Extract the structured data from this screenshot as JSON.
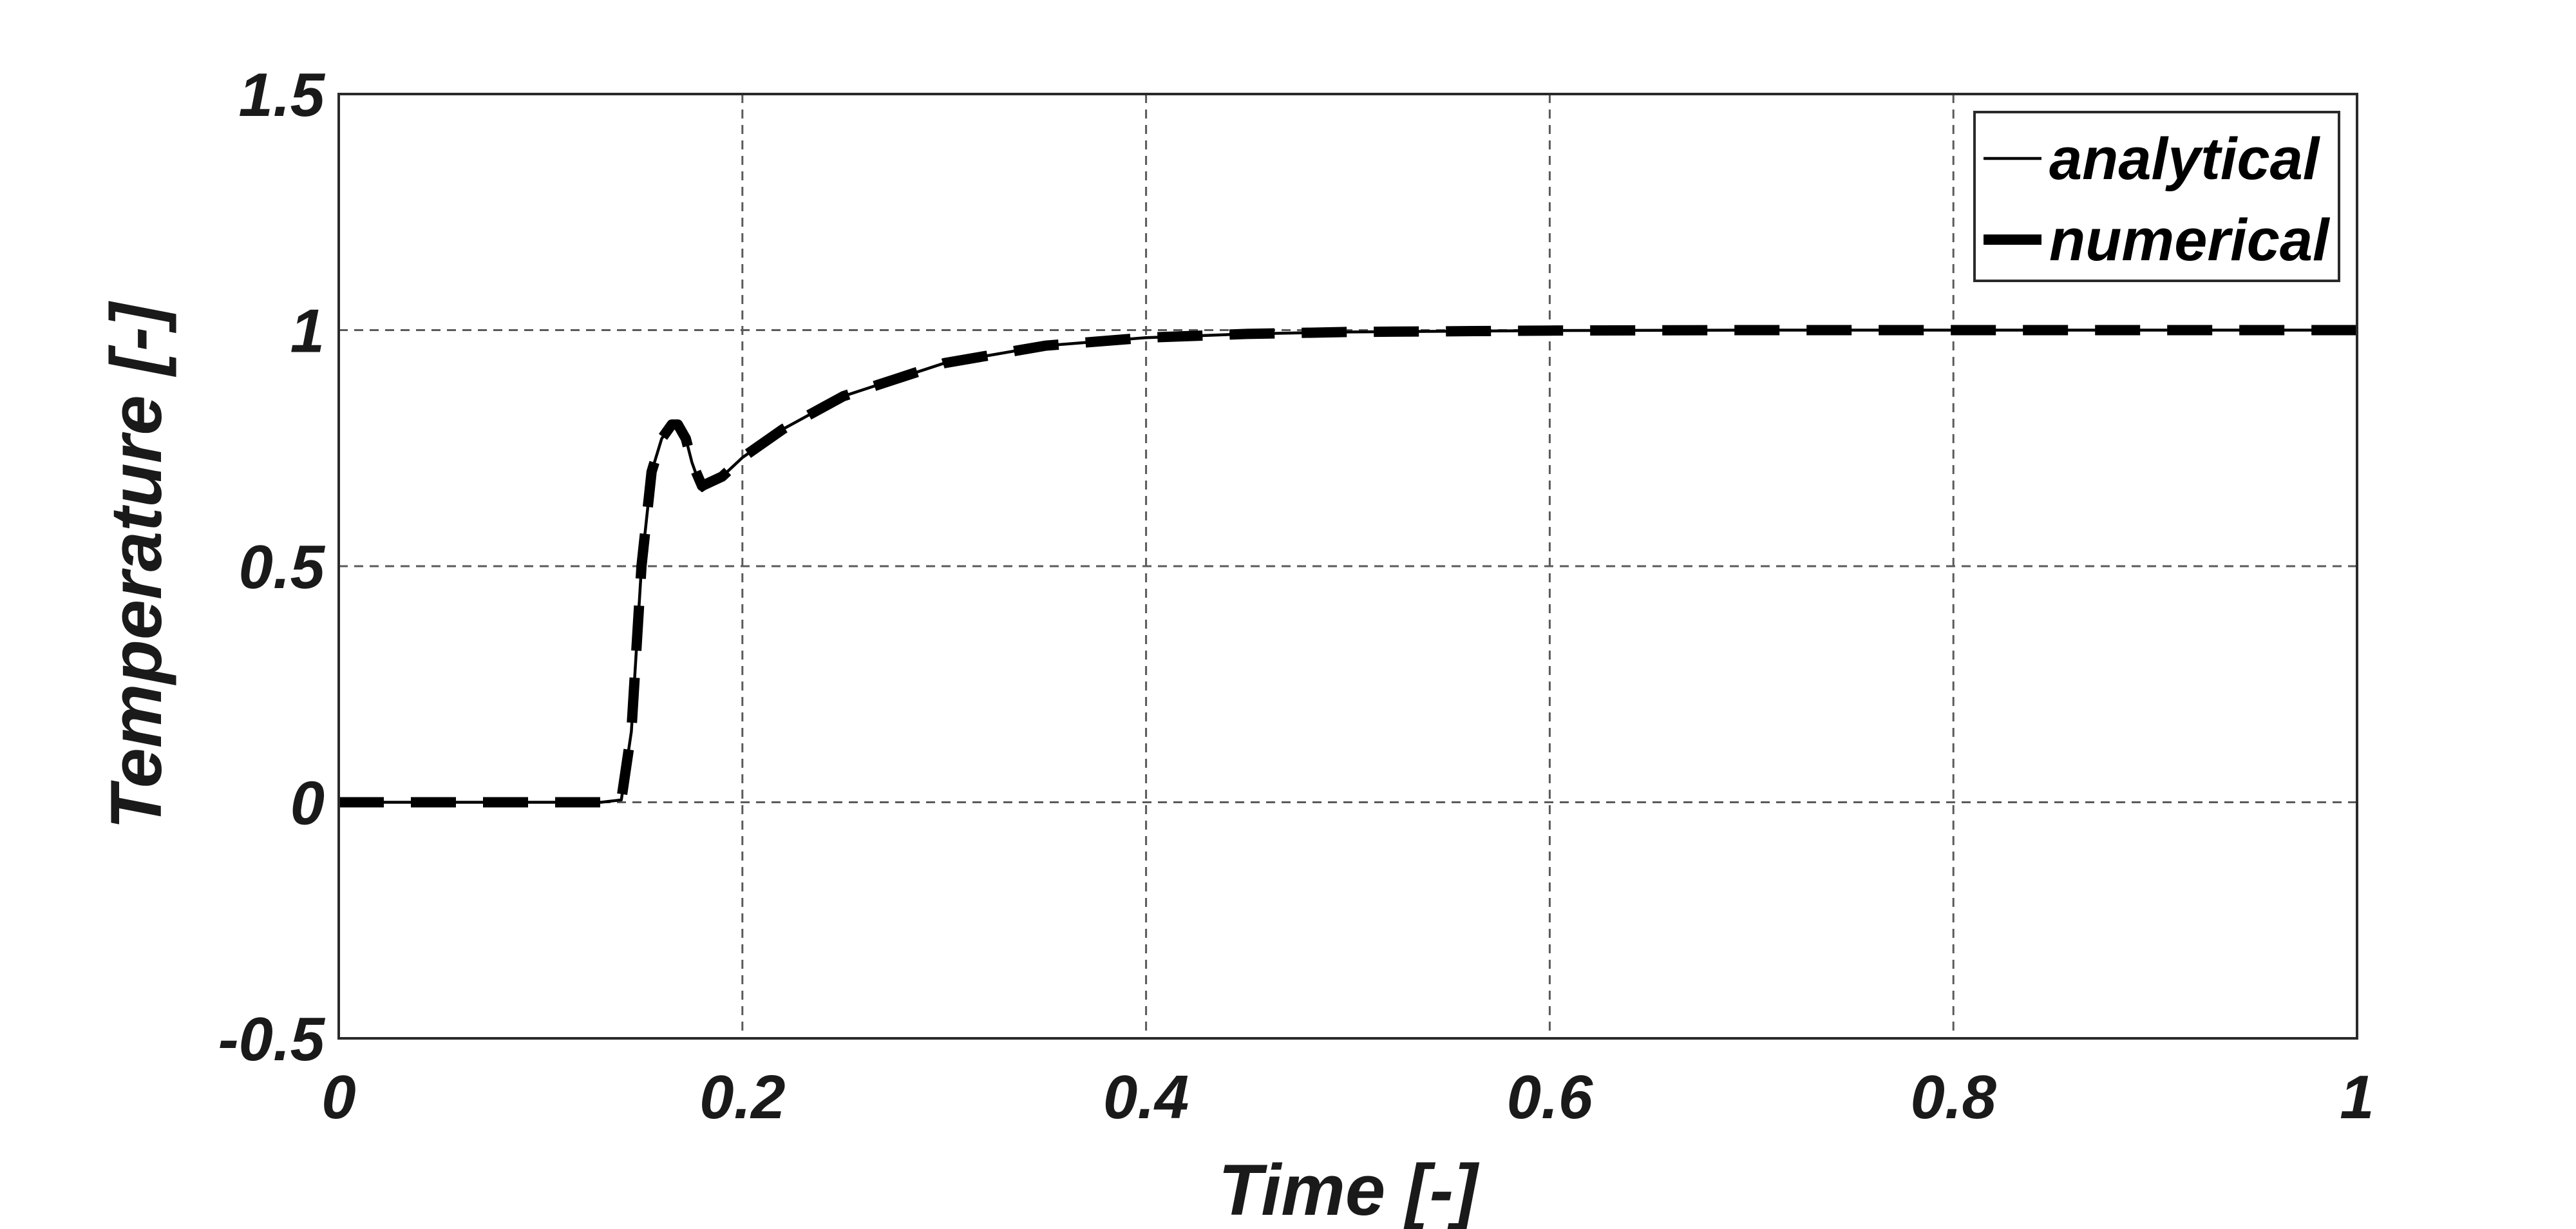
{
  "chart_data": {
    "type": "line",
    "title": "",
    "xlabel": "Time [-]",
    "ylabel": "Temperature [-]",
    "xlim": [
      0,
      1
    ],
    "ylim": [
      -0.5,
      1.5
    ],
    "xticks": [
      0,
      0.2,
      0.4,
      0.6,
      0.8,
      1
    ],
    "yticks": [
      -0.5,
      0,
      0.5,
      1,
      1.5
    ],
    "xtick_labels": [
      "0",
      "0.2",
      "0.4",
      "0.6",
      "0.8",
      "1"
    ],
    "ytick_labels": [
      "-0.5",
      "0",
      "0.5",
      "1",
      "1.5"
    ],
    "grid": true,
    "legend_position": "top-right",
    "colors": {
      "line": "#000000",
      "grid": "#5a5a5a",
      "text": "#1a1a1a"
    },
    "series": [
      {
        "name": "analytical",
        "style": "solid-thin",
        "x": [
          0,
          0.05,
          0.1,
          0.13,
          0.14,
          0.145,
          0.15,
          0.155,
          0.16,
          0.165,
          0.168,
          0.172,
          0.175,
          0.18,
          0.19,
          0.2,
          0.22,
          0.25,
          0.3,
          0.35,
          0.4,
          0.45,
          0.5,
          0.6,
          0.7,
          0.8,
          0.9,
          1.0
        ],
        "y": [
          0,
          0,
          0,
          0,
          0.005,
          0.15,
          0.5,
          0.7,
          0.77,
          0.8,
          0.8,
          0.77,
          0.72,
          0.66,
          0.69,
          0.73,
          0.79,
          0.86,
          0.93,
          0.967,
          0.984,
          0.992,
          0.996,
          0.999,
          1.0,
          1.0,
          1.0,
          1.0
        ]
      },
      {
        "name": "numerical",
        "style": "dashed-thick",
        "x": [
          0,
          0.05,
          0.1,
          0.13,
          0.14,
          0.145,
          0.15,
          0.155,
          0.16,
          0.165,
          0.168,
          0.172,
          0.175,
          0.18,
          0.19,
          0.2,
          0.22,
          0.25,
          0.3,
          0.35,
          0.4,
          0.45,
          0.5,
          0.6,
          0.7,
          0.8,
          0.9,
          1.0
        ],
        "y": [
          0,
          0,
          0,
          0,
          0.005,
          0.15,
          0.5,
          0.7,
          0.77,
          0.8,
          0.8,
          0.77,
          0.72,
          0.67,
          0.69,
          0.73,
          0.79,
          0.86,
          0.93,
          0.967,
          0.984,
          0.992,
          0.996,
          0.999,
          1.0,
          1.0,
          1.0,
          1.0
        ]
      }
    ]
  }
}
